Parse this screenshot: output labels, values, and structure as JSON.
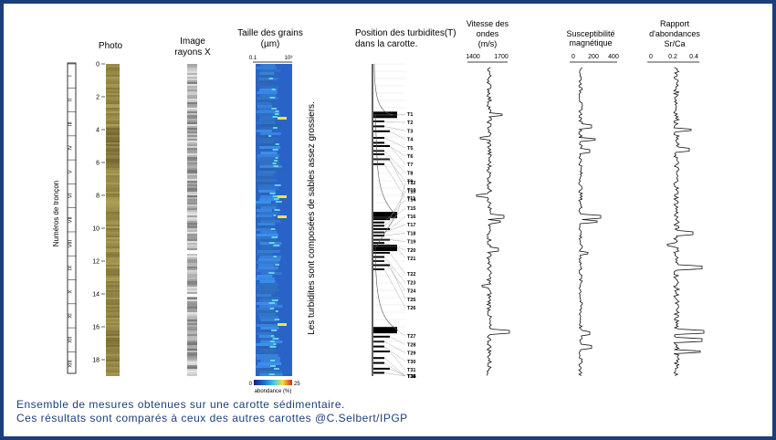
{
  "caption": {
    "line1": "Ensemble de mesures obtenues sur une carotte sédimentaire.",
    "line2": "Ces résultats sont comparés à ceux des autres carottes @C.Selbert/IPGP"
  },
  "sections": {
    "axis_label": "Numéros de tronçon",
    "labels": [
      "I",
      "II",
      "III",
      "IV",
      "V",
      "VI",
      "VII",
      "VIII",
      "IX",
      "X",
      "XI",
      "XII",
      "XIII"
    ]
  },
  "depth_ticks": [
    "0",
    "2",
    "4",
    "6",
    "8",
    "10",
    "12",
    "14",
    "16",
    "18"
  ],
  "columns": {
    "photo": "Photo",
    "xray_line1": "Image",
    "xray_line2": "rayons X",
    "grain_line1": "Taille des grains",
    "grain_line2": "(µm)",
    "grain_axis_min": "0.1",
    "grain_axis_max": "10³",
    "turb_line1": "Position des turbidites(T)",
    "turb_line2": "dans la carotte.",
    "vel_line1": "Vitesse des",
    "vel_line2": "ondes",
    "vel_line3": "(m/s)",
    "vel_ticks": [
      "1400",
      "1700"
    ],
    "sus_line1": "Susceptibilité",
    "sus_line2": "magnétique",
    "sus_ticks": [
      "0",
      "200",
      "400"
    ],
    "sr_line1": "Rapport",
    "sr_line2": "d'abondances",
    "sr_line3": "Sr/Ca",
    "sr_ticks": [
      "0",
      "0.2",
      "0.4"
    ]
  },
  "annotation": "Les turbidites sont composées de sables assez grossiers.",
  "colorbar": {
    "min": "0",
    "max": "25",
    "label": "abondance (%)"
  },
  "turbidites": [
    "T1",
    "T2",
    "T3",
    "T4",
    "T5",
    "T6",
    "T7",
    "T8",
    "T9",
    "T10",
    "T11",
    "T12",
    "T13",
    "T14",
    "T15",
    "T16",
    "T17",
    "T18",
    "T19",
    "T20",
    "T21",
    "T22",
    "T23",
    "T24",
    "T25",
    "T26",
    "T27",
    "T28",
    "T29",
    "T30",
    "T31",
    "T32",
    "T33",
    "T34",
    "T35"
  ],
  "colors": {
    "frame": "#1c3f7c",
    "sediment": "#8a7a52"
  }
}
